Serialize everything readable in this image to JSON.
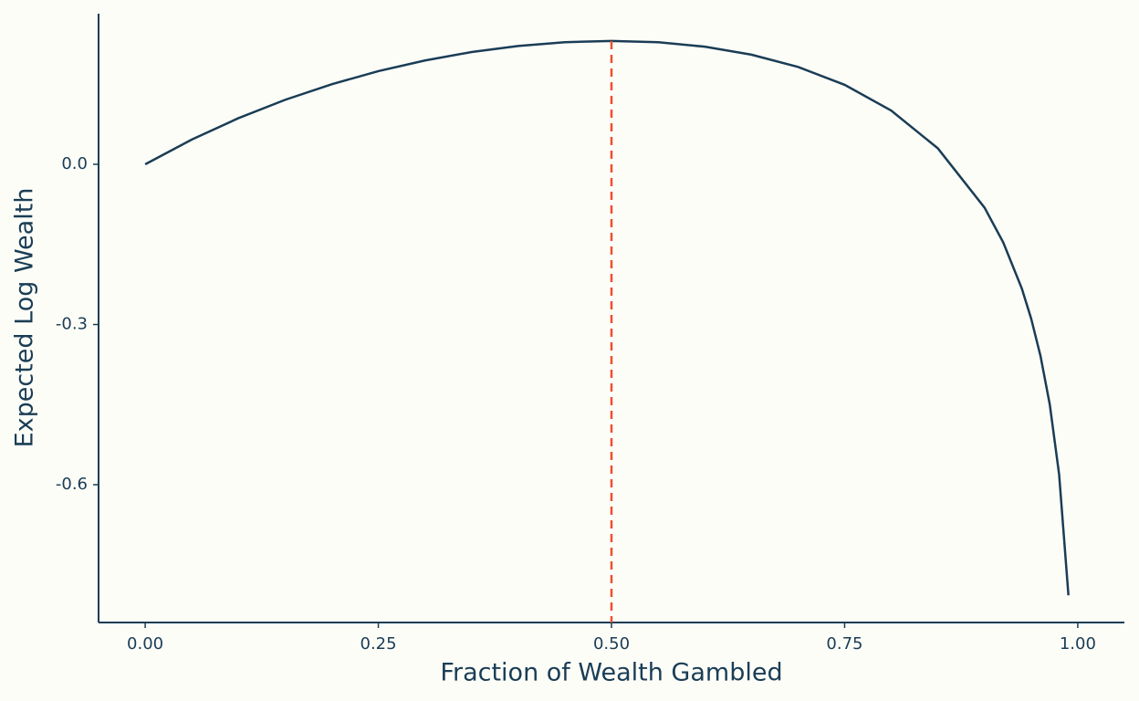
{
  "chart_data": {
    "type": "line",
    "xlabel": "Fraction of Wealth Gambled",
    "ylabel": "Expected Log Wealth",
    "x": [
      0,
      0.05,
      0.1,
      0.15,
      0.2,
      0.25,
      0.3,
      0.35,
      0.4,
      0.45,
      0.5,
      0.55,
      0.6,
      0.65,
      0.7,
      0.75,
      0.8,
      0.85,
      0.9,
      0.92,
      0.94,
      0.95,
      0.96,
      0.97,
      0.98,
      0.99
    ],
    "series": [
      {
        "color": "#1a3d55",
        "values": [
          0,
          0.0464,
          0.0864,
          0.1207,
          0.1499,
          0.1744,
          0.1944,
          0.2102,
          0.2216,
          0.2286,
          0.231,
          0.2285,
          0.2202,
          0.2053,
          0.1823,
          0.1488,
          0.1005,
          0.0298,
          -0.0811,
          -0.146,
          -0.2326,
          -0.2888,
          -0.3586,
          -0.4499,
          -0.5806,
          -0.8071
        ]
      }
    ],
    "vline": {
      "value": 0.5,
      "color": "#f04e30"
    },
    "xlim": [
      -0.05,
      1.05
    ],
    "ylim": [
      -0.858,
      0.282
    ],
    "xticks": [
      {
        "value": 0,
        "label": "0.00"
      },
      {
        "value": 0.25,
        "label": "0.25"
      },
      {
        "value": 0.5,
        "label": "0.50"
      },
      {
        "value": 0.75,
        "label": "0.75"
      },
      {
        "value": 1,
        "label": "1.00"
      }
    ],
    "yticks": [
      {
        "value": -0.6,
        "label": "-0.6"
      },
      {
        "value": -0.3,
        "label": "-0.3"
      },
      {
        "value": 0,
        "label": "0.0"
      }
    ],
    "grid": false
  }
}
